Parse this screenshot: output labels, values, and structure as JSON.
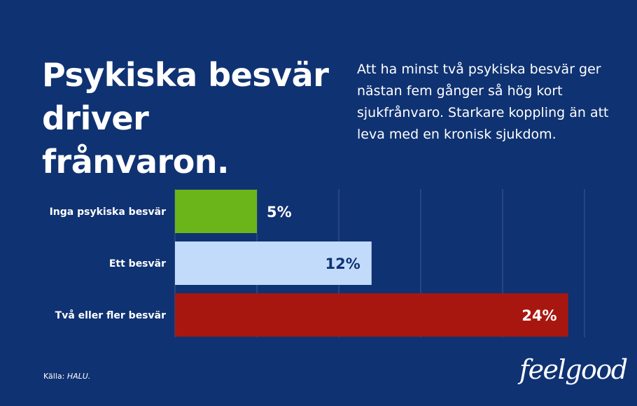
{
  "title": "Psykiska besvär driver frånvaron.",
  "subtitle": "Att ha minst två psykiska besvär ger nästan fem gånger så hög kort sjukfrånvaro. Starkare koppling än att leva med en kronisk sjukdom.",
  "source": {
    "prefix": "Källa:",
    "name": "HALU."
  },
  "logo": "feelgood",
  "colors": {
    "background": "#0f3272",
    "gridline": "#3b5a93",
    "bar_inga": "#6bb51a",
    "bar_ett": "#c3dbfb",
    "bar_tva": "#a8170f",
    "label_dark": "#0f3272",
    "label_light": "#ffffff"
  },
  "chart_data": {
    "type": "bar",
    "orientation": "horizontal",
    "categories": [
      "Inga psykiska besvär",
      "Ett besvär",
      "Två eller fler besvär"
    ],
    "values": [
      5,
      12,
      24
    ],
    "value_labels": [
      "5%",
      "12%",
      "24%"
    ],
    "bar_colors": [
      "#6bb51a",
      "#c3dbfb",
      "#a8170f"
    ],
    "value_label_colors": [
      "#ffffff",
      "#0f3272",
      "#ffffff"
    ],
    "xlim": [
      0,
      25
    ],
    "grid": true,
    "legend": "none"
  }
}
